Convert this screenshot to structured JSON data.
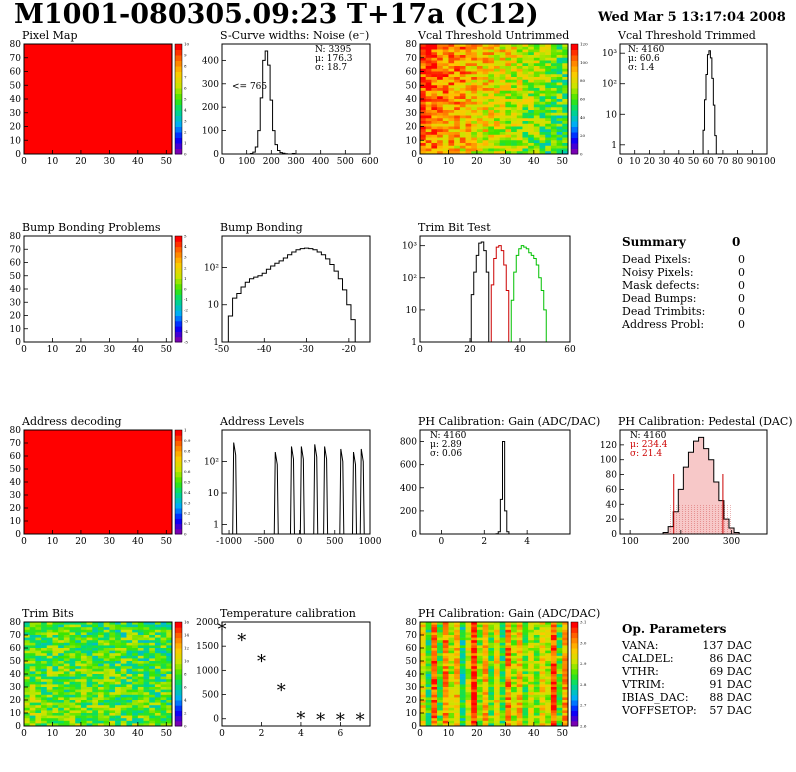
{
  "header": {
    "title": "M1001-080305.09:23 T+17a (C12)",
    "date": "Wed Mar  5 13:17:04 2008"
  },
  "colors": {
    "red": "#ff0000",
    "black": "#000000",
    "green": "#00c000",
    "dark_red": "#cc0000"
  },
  "summary": {
    "title": "Summary",
    "total": "0",
    "rows": [
      {
        "label": "Dead Pixels:",
        "value": "0"
      },
      {
        "label": "Noisy Pixels:",
        "value": "0"
      },
      {
        "label": "Mask defects:",
        "value": "0"
      },
      {
        "label": "Dead Bumps:",
        "value": "0"
      },
      {
        "label": "Dead Trimbits:",
        "value": "0"
      },
      {
        "label": "Address Probl:",
        "value": "0"
      }
    ]
  },
  "op_params": {
    "title": "Op. Parameters",
    "rows": [
      {
        "label": "VANA:",
        "value": "137 DAC"
      },
      {
        "label": "CALDEL:",
        "value": "86 DAC"
      },
      {
        "label": "VTHR:",
        "value": "69 DAC"
      },
      {
        "label": "VTRIM:",
        "value": "91 DAC"
      },
      {
        "label": "IBIAS_DAC:",
        "value": "88 DAC"
      },
      {
        "label": "VOFFSETOP:",
        "value": "57 DAC"
      }
    ]
  },
  "chart_data": [
    {
      "id": "pixel-map",
      "type": "heatmap",
      "title": "Pixel Map",
      "xlim": [
        0,
        52
      ],
      "ylim": [
        0,
        80
      ],
      "xticks": [
        0,
        10,
        20,
        30,
        40,
        50
      ],
      "yticks": [
        0,
        10,
        20,
        30,
        40,
        50,
        60,
        70,
        80
      ],
      "fill": "uniform",
      "fill_color": "#ff0000",
      "zlim": [
        0,
        10
      ],
      "zticks": [
        "0",
        "1",
        "2",
        "3",
        "4",
        "5",
        "6",
        "7",
        "8",
        "9",
        "10"
      ]
    },
    {
      "id": "scurve",
      "type": "histogram",
      "title": "S-Curve widths: Noise (e⁻)",
      "xlim": [
        0,
        600
      ],
      "ylim": [
        0,
        470
      ],
      "xticks": [
        0,
        100,
        200,
        300,
        400,
        500,
        600
      ],
      "yticks": [
        0,
        100,
        200,
        300,
        400
      ],
      "annotation": "<= 765",
      "stats": [
        {
          "label": "N:",
          "value": "3395"
        },
        {
          "label": "μ:",
          "value": "176.3"
        },
        {
          "label": "σ:",
          "value": "18.7"
        }
      ],
      "series": [
        {
          "color": "#000000",
          "x": [
            100,
            110,
            120,
            130,
            140,
            150,
            160,
            170,
            180,
            190,
            200,
            210,
            220,
            230,
            240,
            250,
            260,
            270,
            280,
            290,
            300,
            310
          ],
          "y": [
            0,
            0,
            2,
            8,
            30,
            100,
            240,
            400,
            440,
            380,
            230,
            100,
            40,
            15,
            6,
            3,
            1,
            0,
            0,
            2,
            0,
            0
          ]
        }
      ]
    },
    {
      "id": "vcal-untrimmed",
      "type": "heatmap",
      "title": "Vcal Threshold Untrimmed",
      "xlim": [
        0,
        52
      ],
      "ylim": [
        0,
        80
      ],
      "xticks": [
        0,
        10,
        20,
        30,
        40,
        50
      ],
      "yticks": [
        0,
        10,
        20,
        30,
        40,
        50,
        60,
        70,
        80
      ],
      "fill": "gradient",
      "zlim": [
        0,
        130
      ],
      "zticks": [
        "0",
        "20",
        "40",
        "60",
        "80",
        "100",
        "120"
      ]
    },
    {
      "id": "vcal-trimmed",
      "type": "histogram",
      "title": "Vcal Threshold Trimmed",
      "log": true,
      "xlim": [
        0,
        100
      ],
      "ylim": [
        0.5,
        2000
      ],
      "xticks": [
        0,
        10,
        20,
        30,
        40,
        50,
        60,
        70,
        80,
        90,
        100
      ],
      "yticks": [
        "1",
        "10",
        "10²",
        "10³"
      ],
      "stats": [
        {
          "label": "N:",
          "value": "4160"
        },
        {
          "label": "μ:",
          "value": "60.6"
        },
        {
          "label": "σ:",
          "value": "1.4"
        }
      ],
      "series": [
        {
          "color": "#000000",
          "x": [
            56,
            57,
            58,
            59,
            60,
            61,
            62,
            63,
            64,
            65,
            66
          ],
          "y": [
            0,
            3,
            30,
            200,
            900,
            1200,
            700,
            150,
            20,
            2,
            0
          ]
        }
      ]
    },
    {
      "id": "bump-problems",
      "type": "heatmap",
      "title": "Bump Bonding Problems",
      "xlim": [
        0,
        52
      ],
      "ylim": [
        0,
        80
      ],
      "xticks": [
        0,
        10,
        20,
        30,
        40,
        50
      ],
      "yticks": [
        0,
        10,
        20,
        30,
        40,
        50,
        60,
        70,
        80
      ],
      "fill": "empty",
      "zlim": [
        -5,
        5
      ],
      "zticks": [
        "-5",
        "-4",
        "-3",
        "-2",
        "-1",
        "0",
        "1",
        "2",
        "3",
        "4",
        "5"
      ]
    },
    {
      "id": "bump-bonding",
      "type": "histogram",
      "title": "Bump Bonding",
      "log": true,
      "xlim": [
        -50,
        -15
      ],
      "ylim": [
        1,
        700
      ],
      "xticks": [
        -50,
        -40,
        -30,
        -20
      ],
      "yticks": [
        "1",
        "10",
        "10²"
      ],
      "series": [
        {
          "color": "#000000",
          "x": [
            -49,
            -48,
            -47,
            -46,
            -45,
            -44,
            -43,
            -42,
            -41,
            -40,
            -39,
            -38,
            -37,
            -36,
            -35,
            -34,
            -33,
            -32,
            -31,
            -30,
            -29,
            -28,
            -27,
            -26,
            -25,
            -24,
            -23,
            -22,
            -21,
            -20,
            -19,
            -18
          ],
          "y": [
            1,
            5,
            15,
            20,
            30,
            40,
            50,
            55,
            60,
            70,
            90,
            110,
            130,
            150,
            180,
            220,
            260,
            300,
            320,
            330,
            320,
            300,
            260,
            220,
            170,
            120,
            80,
            50,
            25,
            10,
            4,
            1
          ]
        }
      ]
    },
    {
      "id": "trim-bit-test",
      "type": "histogram",
      "title": "Trim Bit Test",
      "log": true,
      "xlim": [
        0,
        60
      ],
      "ylim": [
        1,
        2000
      ],
      "xticks": [
        0,
        20,
        40,
        60
      ],
      "yticks": [
        "1",
        "10",
        "10²",
        "10³"
      ],
      "series": [
        {
          "color": "#000000",
          "x": [
            20,
            21,
            22,
            23,
            24,
            25,
            26,
            27,
            28
          ],
          "y": [
            1,
            30,
            150,
            500,
            1200,
            1300,
            700,
            150,
            1
          ]
        },
        {
          "color": "#cc0000",
          "x": [
            28,
            29,
            30,
            31,
            32,
            33,
            34,
            35,
            36
          ],
          "y": [
            1,
            60,
            400,
            900,
            1000,
            700,
            250,
            40,
            1
          ]
        },
        {
          "color": "#00c000",
          "x": [
            36,
            37,
            38,
            39,
            40,
            41,
            42,
            43,
            44,
            45,
            46,
            47,
            48,
            49,
            50,
            51
          ],
          "y": [
            1,
            20,
            150,
            500,
            800,
            1000,
            900,
            800,
            600,
            500,
            400,
            250,
            100,
            40,
            10,
            1
          ]
        }
      ]
    },
    {
      "id": "address-decoding",
      "type": "heatmap",
      "title": "Address decoding",
      "xlim": [
        0,
        52
      ],
      "ylim": [
        0,
        80
      ],
      "xticks": [
        0,
        10,
        20,
        30,
        40,
        50
      ],
      "yticks": [
        0,
        10,
        20,
        30,
        40,
        50,
        60,
        70,
        80
      ],
      "fill": "uniform",
      "fill_color": "#ff0000",
      "zlim": [
        0,
        1
      ],
      "zticks": [
        "0",
        "0.1",
        "0.2",
        "0.3",
        "0.4",
        "0.5",
        "0.6",
        "0.7",
        "0.8",
        "0.9",
        "1"
      ]
    },
    {
      "id": "address-levels",
      "type": "histogram",
      "title": "Address Levels",
      "log": true,
      "xlim": [
        -1100,
        1000
      ],
      "ylim": [
        0.5,
        1000
      ],
      "xticks": [
        -1000,
        -500,
        0,
        500,
        1000
      ],
      "yticks": [
        "1",
        "10",
        "10²"
      ],
      "peaks": [
        -920,
        -330,
        -100,
        40,
        230,
        370,
        600,
        780,
        890
      ],
      "peak_heights": [
        400,
        200,
        300,
        300,
        350,
        300,
        250,
        200,
        250
      ],
      "series": [
        {
          "color": "#000000",
          "x": [],
          "y": []
        }
      ]
    },
    {
      "id": "ph-gain",
      "type": "histogram",
      "title": "PH Calibration: Gain (ADC/DAC)",
      "xlim": [
        -1,
        6
      ],
      "ylim": [
        0,
        900
      ],
      "xticks": [
        0,
        2,
        4
      ],
      "yticks": [
        0,
        200,
        400,
        600,
        800
      ],
      "stats": [
        {
          "label": "N:",
          "value": "4160"
        },
        {
          "label": "μ:",
          "value": "2.89"
        },
        {
          "label": "σ:",
          "value": "0.06"
        }
      ],
      "series": [
        {
          "color": "#000000",
          "x": [
            2.6,
            2.7,
            2.8,
            2.9,
            3.0,
            3.1,
            3.2
          ],
          "y": [
            2,
            20,
            300,
            800,
            200,
            20,
            0
          ]
        }
      ]
    },
    {
      "id": "ph-pedestal",
      "type": "histogram",
      "title": "PH Calibration: Pedestal (DAC)",
      "xlim": [
        80,
        370
      ],
      "ylim": [
        0,
        140
      ],
      "xticks": [
        100,
        200,
        300
      ],
      "yticks": [
        0,
        20,
        40,
        60,
        80,
        100,
        120
      ],
      "stats": [
        {
          "label": "N:",
          "value": "4160"
        },
        {
          "label": "μ:",
          "value": "234.4",
          "color": "#cc0000"
        },
        {
          "label": "σ:",
          "value": "21.4",
          "color": "#cc0000"
        }
      ],
      "series": [
        {
          "color": "#000000",
          "x": [
            170,
            180,
            190,
            200,
            210,
            220,
            230,
            240,
            250,
            260,
            270,
            280,
            290,
            300,
            310
          ],
          "y": [
            2,
            10,
            30,
            60,
            90,
            110,
            125,
            130,
            115,
            100,
            70,
            45,
            20,
            8,
            2
          ]
        }
      ]
    },
    {
      "id": "trim-bits",
      "type": "heatmap",
      "title": "Trim Bits",
      "xlim": [
        0,
        52
      ],
      "ylim": [
        0,
        80
      ],
      "xticks": [
        0,
        10,
        20,
        30,
        40,
        50
      ],
      "yticks": [
        0,
        10,
        20,
        30,
        40,
        50,
        60,
        70,
        80
      ],
      "fill": "trim",
      "zlim": [
        0,
        16
      ],
      "zticks": [
        "0",
        "2",
        "4",
        "6",
        "8",
        "10",
        "12",
        "14",
        "16"
      ]
    },
    {
      "id": "temp-calibration",
      "type": "scatter",
      "title": "Temperature calibration",
      "xlim": [
        0,
        7.5
      ],
      "ylim": [
        -150,
        2000
      ],
      "xticks": [
        0,
        2,
        4,
        6
      ],
      "yticks": [
        0,
        500,
        1000,
        1500,
        2000
      ],
      "series": [
        {
          "color": "#000000",
          "x": [
            0,
            1,
            2,
            3,
            4,
            5,
            6,
            7
          ],
          "y": [
            1850,
            1620,
            1180,
            580,
            0,
            -30,
            -30,
            -30
          ]
        }
      ]
    },
    {
      "id": "ph-gain-map",
      "type": "heatmap",
      "title": "PH Calibration: Gain (ADC/DAC)",
      "xlim": [
        0,
        52
      ],
      "ylim": [
        0,
        80
      ],
      "xticks": [
        0,
        10,
        20,
        30,
        40,
        50
      ],
      "yticks": [
        0,
        10,
        20,
        30,
        40,
        50,
        60,
        70,
        80
      ],
      "fill": "gain",
      "zlim": [
        2.6,
        3.2
      ],
      "zticks": [
        "2.6",
        "2.7",
        "2.8",
        "2.9",
        "3.0",
        "3.1"
      ]
    }
  ]
}
